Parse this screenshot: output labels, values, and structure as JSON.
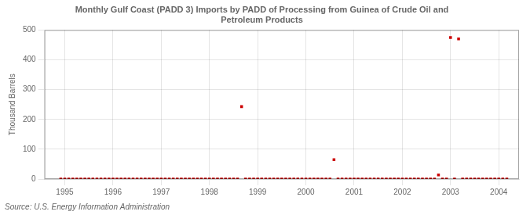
{
  "chart_data": {
    "type": "scatter",
    "title": "Monthly Gulf Coast (PADD 3) Imports by PADD of Processing from Guinea of Crude Oil and\nPetroleum Products",
    "y_label": "Thousand Barrels",
    "annotation": "Source: U.S. Energy Information Administration",
    "color": "#cc0000",
    "marker": "square",
    "grid": true,
    "xlim": [
      1994.58,
      2004.42
    ],
    "ylim": [
      0,
      500
    ],
    "xticks": [
      1995,
      1996,
      1997,
      1998,
      1999,
      2000,
      2001,
      2002,
      2003,
      2004
    ],
    "yticks": [
      0,
      100,
      200,
      300,
      400,
      500
    ],
    "x": [
      1994.917,
      1995.0,
      1995.083,
      1995.167,
      1995.25,
      1995.333,
      1995.417,
      1995.5,
      1995.583,
      1995.667,
      1995.75,
      1995.833,
      1995.917,
      1996.0,
      1996.083,
      1996.167,
      1996.25,
      1996.333,
      1996.417,
      1996.5,
      1996.583,
      1996.667,
      1996.75,
      1996.833,
      1996.917,
      1997.0,
      1997.083,
      1997.167,
      1997.25,
      1997.333,
      1997.417,
      1997.5,
      1997.583,
      1997.667,
      1997.75,
      1997.833,
      1997.917,
      1998.0,
      1998.083,
      1998.167,
      1998.25,
      1998.333,
      1998.417,
      1998.5,
      1998.583,
      1998.667,
      1998.75,
      1998.833,
      1998.917,
      1999.0,
      1999.083,
      1999.167,
      1999.25,
      1999.333,
      1999.417,
      1999.5,
      1999.583,
      1999.667,
      1999.75,
      1999.833,
      1999.917,
      2000.0,
      2000.083,
      2000.167,
      2000.25,
      2000.333,
      2000.417,
      2000.5,
      2000.583,
      2000.667,
      2000.75,
      2000.833,
      2000.917,
      2001.0,
      2001.083,
      2001.167,
      2001.25,
      2001.333,
      2001.417,
      2001.5,
      2001.583,
      2001.667,
      2001.75,
      2001.833,
      2001.917,
      2002.0,
      2002.083,
      2002.167,
      2002.25,
      2002.333,
      2002.417,
      2002.5,
      2002.583,
      2002.667,
      2002.75,
      2002.833,
      2002.917,
      2003.0,
      2003.083,
      2003.167,
      2003.25,
      2003.333,
      2003.417,
      2003.5,
      2003.583,
      2003.667,
      2003.75,
      2003.833,
      2003.917,
      2004.0,
      2004.083,
      2004.167
    ],
    "values": [
      0,
      0,
      0,
      0,
      0,
      0,
      0,
      0,
      0,
      0,
      0,
      0,
      0,
      0,
      0,
      0,
      0,
      0,
      0,
      0,
      0,
      0,
      0,
      0,
      0,
      0,
      0,
      0,
      0,
      0,
      0,
      0,
      0,
      0,
      0,
      0,
      0,
      0,
      0,
      0,
      0,
      0,
      0,
      0,
      0,
      243,
      0,
      0,
      0,
      0,
      0,
      0,
      0,
      0,
      0,
      0,
      0,
      0,
      0,
      0,
      0,
      0,
      0,
      0,
      0,
      0,
      0,
      0,
      65,
      0,
      0,
      0,
      0,
      0,
      0,
      0,
      0,
      0,
      0,
      0,
      0,
      0,
      0,
      0,
      0,
      0,
      0,
      0,
      0,
      0,
      0,
      0,
      0,
      0,
      14,
      0,
      0,
      475,
      0,
      470,
      0,
      0,
      0,
      0,
      0,
      0,
      0,
      0,
      0,
      0,
      0,
      0
    ]
  }
}
